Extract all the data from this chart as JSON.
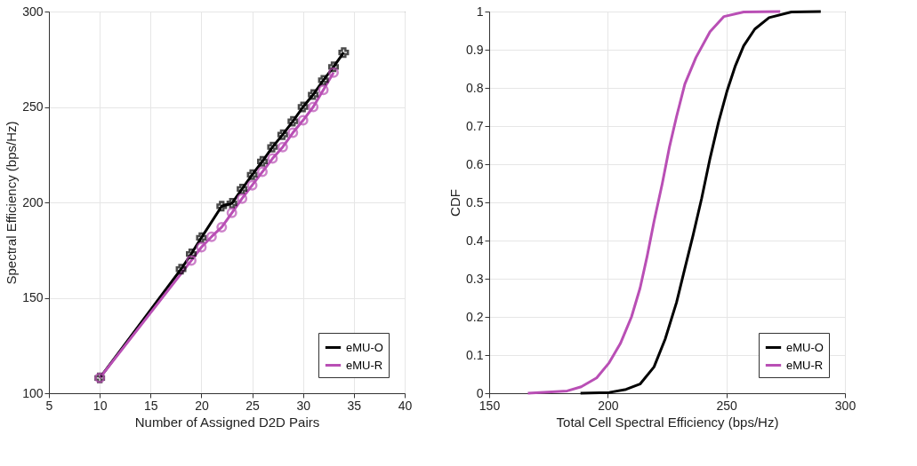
{
  "chart_data": [
    {
      "type": "line",
      "xlabel": "Number of Assigned D2D Pairs",
      "ylabel": "Spectral Efficiency (bps/Hz)",
      "xlim": [
        5,
        40
      ],
      "ylim": [
        100,
        300
      ],
      "xticks": [
        5,
        10,
        15,
        20,
        25,
        30,
        35,
        40
      ],
      "yticks": [
        100,
        150,
        200,
        250,
        300
      ],
      "grid": true,
      "legend": "bottom right",
      "line_style": "solid",
      "series": [
        {
          "name": "eMU-O",
          "color": "#000000",
          "marker": "cross",
          "x": [
            10,
            18,
            19,
            20,
            22,
            23,
            24,
            25,
            26,
            27,
            28,
            29,
            30,
            31,
            32,
            33,
            34
          ],
          "values": [
            108,
            165,
            173,
            181.5,
            198,
            199.5,
            207,
            214.5,
            221.5,
            229,
            235.5,
            242.5,
            250,
            256.5,
            264,
            271,
            278.5
          ]
        },
        {
          "name": "eMU-R",
          "color": "#b94fb5",
          "marker": "circle",
          "x": [
            10,
            19,
            20,
            21,
            22,
            23,
            24,
            25,
            26,
            27,
            28,
            29,
            30,
            31,
            32,
            33
          ],
          "values": [
            108,
            169.5,
            176.5,
            182,
            187,
            194.5,
            202,
            209,
            216,
            223,
            229,
            236.5,
            243,
            250,
            259,
            268
          ]
        }
      ]
    },
    {
      "type": "line",
      "xlabel": "Total Cell Spectral Efficiency (bps/Hz)",
      "ylabel": "CDF",
      "xlim": [
        150,
        300
      ],
      "ylim": [
        0,
        1
      ],
      "xticks": [
        150,
        200,
        250,
        300
      ],
      "yticks": [
        0,
        0.1,
        0.2,
        0.3,
        0.4,
        0.5,
        0.6,
        0.7,
        0.8,
        0.9,
        1
      ],
      "grid": true,
      "legend": "bottom right",
      "marker": "none",
      "line_style": "solid",
      "series": [
        {
          "name": "eMU-O",
          "color": "#000000",
          "x": [
            188.5,
            200.6,
            207.7,
            213.6,
            219.5,
            224.2,
            229,
            232.5,
            236,
            239.6,
            243.1,
            246.7,
            250.2,
            253.8,
            257.3,
            262,
            268,
            277.4,
            289.8
          ],
          "values": [
            0,
            0.002,
            0.01,
            0.024,
            0.069,
            0.142,
            0.238,
            0.327,
            0.415,
            0.511,
            0.615,
            0.71,
            0.79,
            0.858,
            0.91,
            0.954,
            0.984,
            0.999,
            1
          ]
        },
        {
          "name": "eMU-R",
          "color": "#b94fb5",
          "x": [
            166.3,
            182.9,
            188.8,
            195.3,
            200.6,
            205.3,
            210,
            213.6,
            216.5,
            219.5,
            223,
            226,
            229,
            232.5,
            237.2,
            243.1,
            249,
            257.3,
            272.7
          ],
          "values": [
            0,
            0.006,
            0.017,
            0.04,
            0.08,
            0.13,
            0.2,
            0.275,
            0.356,
            0.45,
            0.55,
            0.645,
            0.725,
            0.81,
            0.88,
            0.947,
            0.987,
            0.999,
            1
          ]
        }
      ]
    }
  ]
}
